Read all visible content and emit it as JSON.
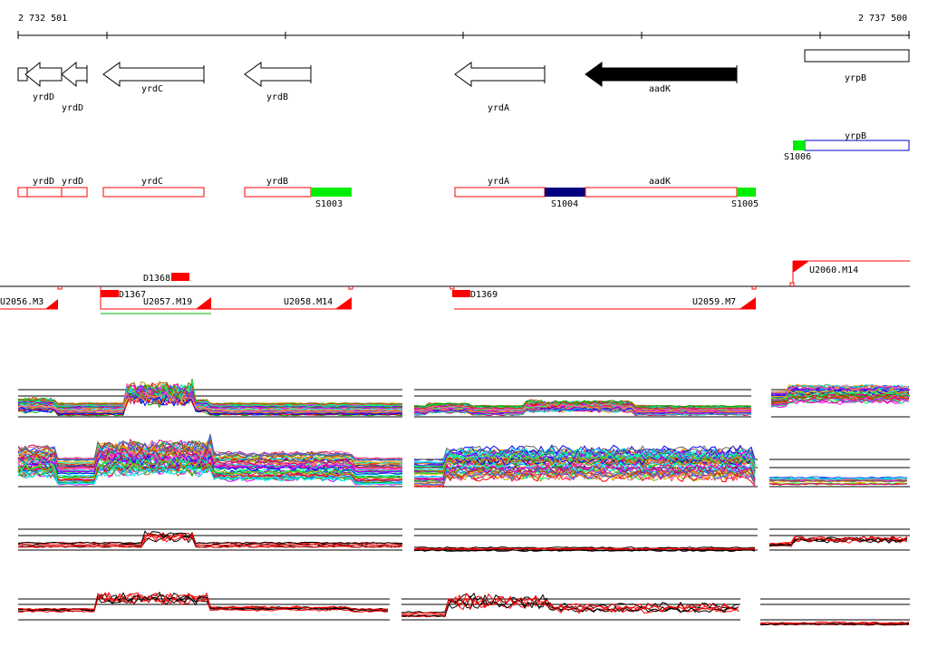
{
  "ruler": {
    "start_label": "2 732 501",
    "end_label": "2 737 500"
  },
  "colors": {
    "red": "#ff0000",
    "green": "#00ee00",
    "navy": "#000080",
    "blue": "#0000cc",
    "black": "#000000"
  },
  "annotated_genes": [
    {
      "name": "yrdD",
      "strand": "-",
      "label": "yrdD"
    },
    {
      "name": "yrdD2",
      "strand": "-",
      "label": "yrdD"
    },
    {
      "name": "yrdC",
      "strand": "-",
      "label": "yrdC"
    },
    {
      "name": "yrdB",
      "strand": "-",
      "label": "yrdB"
    },
    {
      "name": "yrdA",
      "strand": "-",
      "label": "yrdA"
    },
    {
      "name": "aadK",
      "strand": "-",
      "label": "aadK",
      "filled": true
    },
    {
      "name": "yrpB",
      "strand": "+",
      "label": "yrpB"
    }
  ],
  "transcript_units": [
    {
      "label": "yrdD"
    },
    {
      "label": "yrdD"
    },
    {
      "label": "yrdC"
    },
    {
      "label": "yrdB"
    },
    {
      "label": "yrdA"
    },
    {
      "label": "aadK"
    },
    {
      "label": "yrpB"
    }
  ],
  "segments": [
    {
      "label": "S1003",
      "color_key": "green"
    },
    {
      "label": "S1004",
      "color_key": "navy"
    },
    {
      "label": "S1005",
      "color_key": "green"
    },
    {
      "label": "S1006",
      "color_key": "green"
    }
  ],
  "promoters": [
    {
      "label": "D1368"
    },
    {
      "label": "D1367"
    },
    {
      "label": "D1369"
    }
  ],
  "upshifts": [
    {
      "label": "U2056.M3"
    },
    {
      "label": "U2057.M19"
    },
    {
      "label": "U2058.M14"
    },
    {
      "label": "U2059.M7"
    },
    {
      "label": "U2060.M14"
    }
  ]
}
